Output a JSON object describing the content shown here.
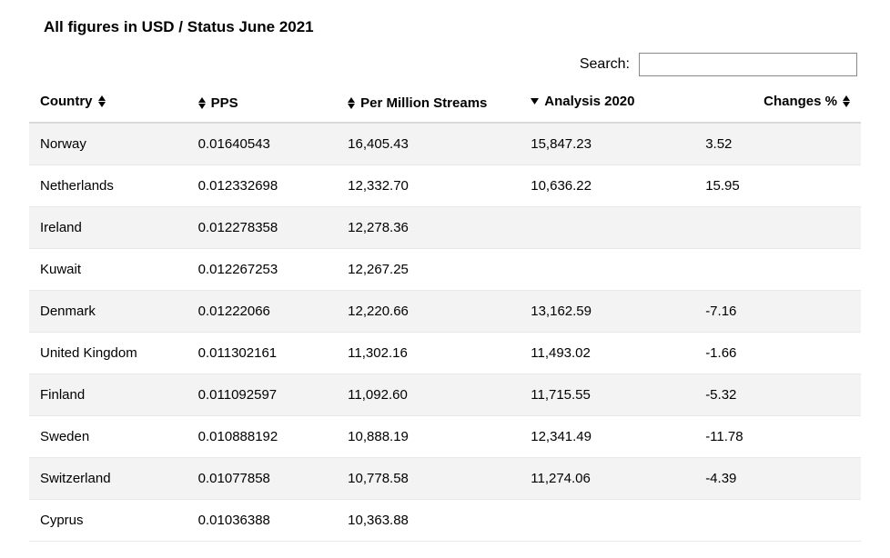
{
  "title": "All figures in USD / Status June 2021",
  "search": {
    "label": "Search:",
    "value": ""
  },
  "columns": [
    {
      "key": "country",
      "label": "Country",
      "sort": "both",
      "icon_position": "right"
    },
    {
      "key": "pps",
      "label": "PPS",
      "sort": "both",
      "icon_position": "left"
    },
    {
      "key": "pms",
      "label": "Per Million Streams",
      "sort": "both",
      "icon_position": "left"
    },
    {
      "key": "analysis",
      "label": "Analysis 2020",
      "sort": "desc",
      "icon_position": "left"
    },
    {
      "key": "changes",
      "label": "Changes %",
      "sort": "both",
      "icon_position": "right"
    }
  ],
  "rows": [
    {
      "country": "Norway",
      "pps": "0.01640543",
      "pms": "16,405.43",
      "analysis": "15,847.23",
      "changes": "3.52"
    },
    {
      "country": "Netherlands",
      "pps": "0.012332698",
      "pms": "12,332.70",
      "analysis": "10,636.22",
      "changes": "15.95"
    },
    {
      "country": "Ireland",
      "pps": "0.012278358",
      "pms": "12,278.36",
      "analysis": "",
      "changes": ""
    },
    {
      "country": "Kuwait",
      "pps": "0.012267253",
      "pms": "12,267.25",
      "analysis": "",
      "changes": ""
    },
    {
      "country": "Denmark",
      "pps": "0.01222066",
      "pms": "12,220.66",
      "analysis": "13,162.59",
      "changes": "-7.16"
    },
    {
      "country": "United Kingdom",
      "pps": "0.011302161",
      "pms": "11,302.16",
      "analysis": "11,493.02",
      "changes": "-1.66"
    },
    {
      "country": "Finland",
      "pps": "0.011092597",
      "pms": "11,092.60",
      "analysis": "11,715.55",
      "changes": "-5.32"
    },
    {
      "country": "Sweden",
      "pps": "0.010888192",
      "pms": "10,888.19",
      "analysis": "12,341.49",
      "changes": "-11.78"
    },
    {
      "country": "Switzerland",
      "pps": "0.01077858",
      "pms": "10,778.58",
      "analysis": "11,274.06",
      "changes": "-4.39"
    },
    {
      "country": "Cyprus",
      "pps": "0.01036388",
      "pms": "10,363.88",
      "analysis": "",
      "changes": ""
    }
  ],
  "style": {
    "stripe_odd": "#f3f3f3",
    "stripe_even": "#ffffff",
    "header_border": "#d9d9d9",
    "row_border": "#e8e8e8",
    "text_color": "#000000",
    "sort_icon_color": "#000000"
  }
}
